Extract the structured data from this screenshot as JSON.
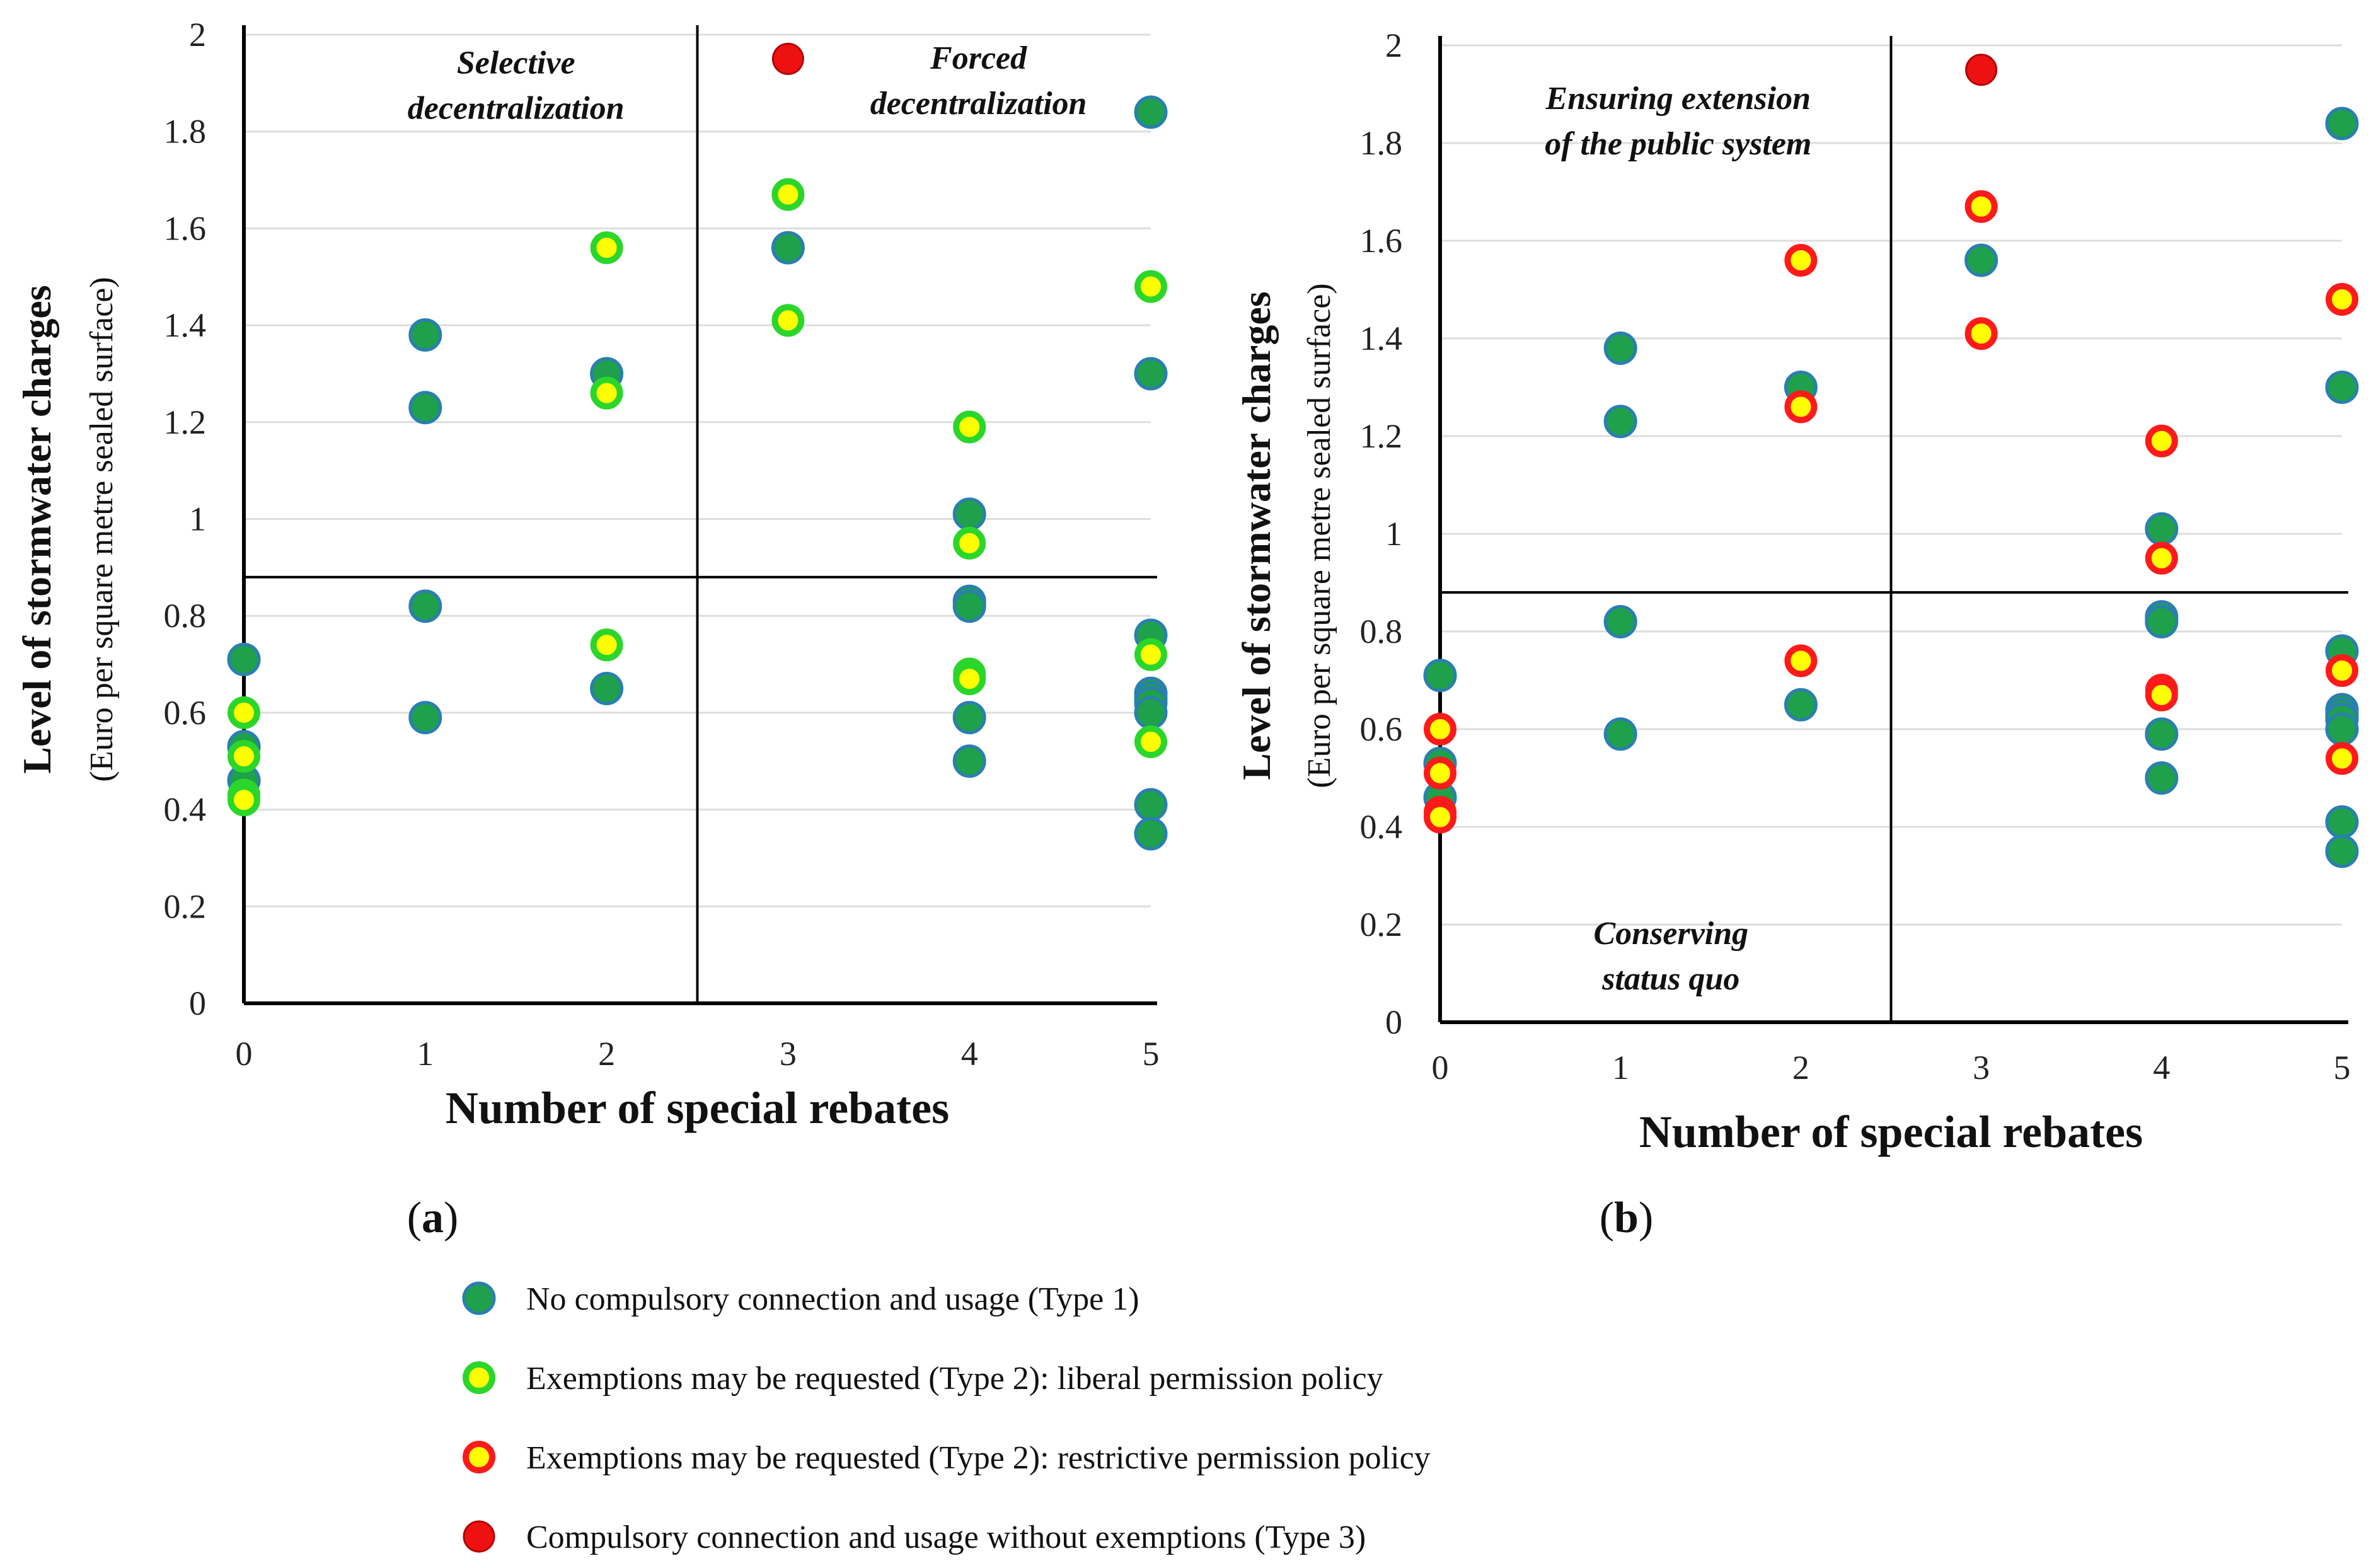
{
  "colors": {
    "type1_fill": "#1fa04a",
    "type1_stroke": "#2a7fb0",
    "type2_fill": "#ffff00",
    "liberal_ring": "#2bd62b",
    "restrictive_ring": "#ff1a1a",
    "type3_fill": "#ee1111",
    "grid": "#dddddd"
  },
  "chart_data": [
    {
      "type": "scatter",
      "panel_label": "(a)",
      "xlabel": "Number of special rebates",
      "ylabel": "Level of stormwater charges",
      "ylabel_sub": "(Euro per square metre sealed surface)",
      "xlim": [
        0,
        5
      ],
      "ylim": [
        0,
        2
      ],
      "x_ticks": [
        "0",
        "1",
        "2",
        "3",
        "4",
        "5"
      ],
      "y_ticks": [
        "0",
        "0.2",
        "0.4",
        "0.6",
        "0.8",
        "1",
        "1.2",
        "1.4",
        "1.6",
        "1.8",
        "2"
      ],
      "divider_x": 2.5,
      "divider_y": 0.88,
      "quadrant_labels": [
        {
          "lines": [
            "Selective",
            "decentralization"
          ],
          "x": 1.5,
          "y": 1.92
        },
        {
          "lines": [
            "Forced",
            "decentralization"
          ],
          "x": 4.05,
          "y": 1.93
        }
      ],
      "series": [
        {
          "name": "No compulsory connection and usage (Type 1)",
          "style": "type1",
          "points": [
            [
              0,
              0.71
            ],
            [
              0,
              0.53
            ],
            [
              0,
              0.46
            ],
            [
              1,
              1.38
            ],
            [
              1,
              1.23
            ],
            [
              1,
              0.82
            ],
            [
              1,
              0.59
            ],
            [
              2,
              1.3
            ],
            [
              2,
              0.65
            ],
            [
              3,
              1.56
            ],
            [
              4,
              1.01
            ],
            [
              4,
              0.83
            ],
            [
              4,
              0.82
            ],
            [
              4,
              0.59
            ],
            [
              4,
              0.5
            ],
            [
              5,
              1.84
            ],
            [
              5,
              1.3
            ],
            [
              5,
              0.76
            ],
            [
              5,
              0.64
            ],
            [
              5,
              0.63
            ],
            [
              5,
              0.62
            ],
            [
              5,
              0.6
            ],
            [
              5,
              0.41
            ],
            [
              5,
              0.35
            ]
          ]
        },
        {
          "name": "Exemptions may be requested (Type 2): liberal permission policy",
          "style": "liberal",
          "points": [
            [
              0,
              0.6
            ],
            [
              0,
              0.51
            ],
            [
              0,
              0.43
            ],
            [
              0,
              0.42
            ],
            [
              2,
              1.56
            ],
            [
              2,
              1.26
            ],
            [
              2,
              0.74
            ],
            [
              3,
              1.67
            ],
            [
              3,
              1.41
            ],
            [
              4,
              1.19
            ],
            [
              4,
              0.95
            ],
            [
              4,
              0.68
            ],
            [
              4,
              0.67
            ],
            [
              5,
              1.48
            ],
            [
              5,
              0.72
            ],
            [
              5,
              0.54
            ]
          ]
        },
        {
          "name": "Compulsory connection and usage without exemptions (Type 3)",
          "style": "type3",
          "points": [
            [
              3,
              1.95
            ]
          ]
        }
      ]
    },
    {
      "type": "scatter",
      "panel_label": "(b)",
      "xlabel": "Number of special rebates",
      "ylabel": "Level of stormwater charges",
      "ylabel_sub": "(Euro per square metre sealed surface)",
      "xlim": [
        0,
        5
      ],
      "ylim": [
        0,
        2
      ],
      "x_ticks": [
        "0",
        "1",
        "2",
        "3",
        "4",
        "5"
      ],
      "y_ticks": [
        "0",
        "0.2",
        "0.4",
        "0.6",
        "0.8",
        "1",
        "1.2",
        "1.4",
        "1.6",
        "1.8",
        "2"
      ],
      "divider_x": 2.5,
      "divider_y": 0.88,
      "quadrant_labels": [
        {
          "lines": [
            "Ensuring extension",
            "of the public system"
          ],
          "x": 1.32,
          "y": 1.87
        },
        {
          "lines": [
            "Conserving",
            "status quo"
          ],
          "x": 1.28,
          "y": 0.16
        }
      ],
      "series": [
        {
          "name": "No compulsory connection and usage (Type 1)",
          "style": "type1",
          "points": [
            [
              0,
              0.71
            ],
            [
              0,
              0.53
            ],
            [
              0,
              0.46
            ],
            [
              1,
              1.38
            ],
            [
              1,
              1.23
            ],
            [
              1,
              0.82
            ],
            [
              1,
              0.59
            ],
            [
              2,
              1.3
            ],
            [
              2,
              0.65
            ],
            [
              3,
              1.56
            ],
            [
              4,
              1.01
            ],
            [
              4,
              0.83
            ],
            [
              4,
              0.82
            ],
            [
              4,
              0.59
            ],
            [
              4,
              0.5
            ],
            [
              5,
              1.84
            ],
            [
              5,
              1.3
            ],
            [
              5,
              0.76
            ],
            [
              5,
              0.64
            ],
            [
              5,
              0.63
            ],
            [
              5,
              0.62
            ],
            [
              5,
              0.6
            ],
            [
              5,
              0.41
            ],
            [
              5,
              0.35
            ]
          ]
        },
        {
          "name": "Exemptions may be requested (Type 2): restrictive permission policy",
          "style": "restrictive",
          "points": [
            [
              0,
              0.6
            ],
            [
              0,
              0.51
            ],
            [
              0,
              0.43
            ],
            [
              0,
              0.42
            ],
            [
              2,
              1.56
            ],
            [
              2,
              1.26
            ],
            [
              2,
              0.74
            ],
            [
              3,
              1.67
            ],
            [
              3,
              1.41
            ],
            [
              4,
              1.19
            ],
            [
              4,
              0.95
            ],
            [
              4,
              0.68
            ],
            [
              4,
              0.67
            ],
            [
              5,
              1.48
            ],
            [
              5,
              0.72
            ],
            [
              5,
              0.54
            ]
          ]
        },
        {
          "name": "Compulsory connection and usage without exemptions (Type 3)",
          "style": "type3",
          "points": [
            [
              3,
              1.95
            ]
          ]
        }
      ]
    }
  ],
  "legend": [
    {
      "style": "type1",
      "label": "No compulsory connection and usage (Type 1)"
    },
    {
      "style": "liberal",
      "label": "Exemptions may be requested (Type 2): liberal permission policy"
    },
    {
      "style": "restrictive",
      "label": "Exemptions may be requested (Type 2): restrictive permission policy"
    },
    {
      "style": "type3",
      "label": "Compulsory connection and usage without exemptions (Type 3)"
    }
  ]
}
